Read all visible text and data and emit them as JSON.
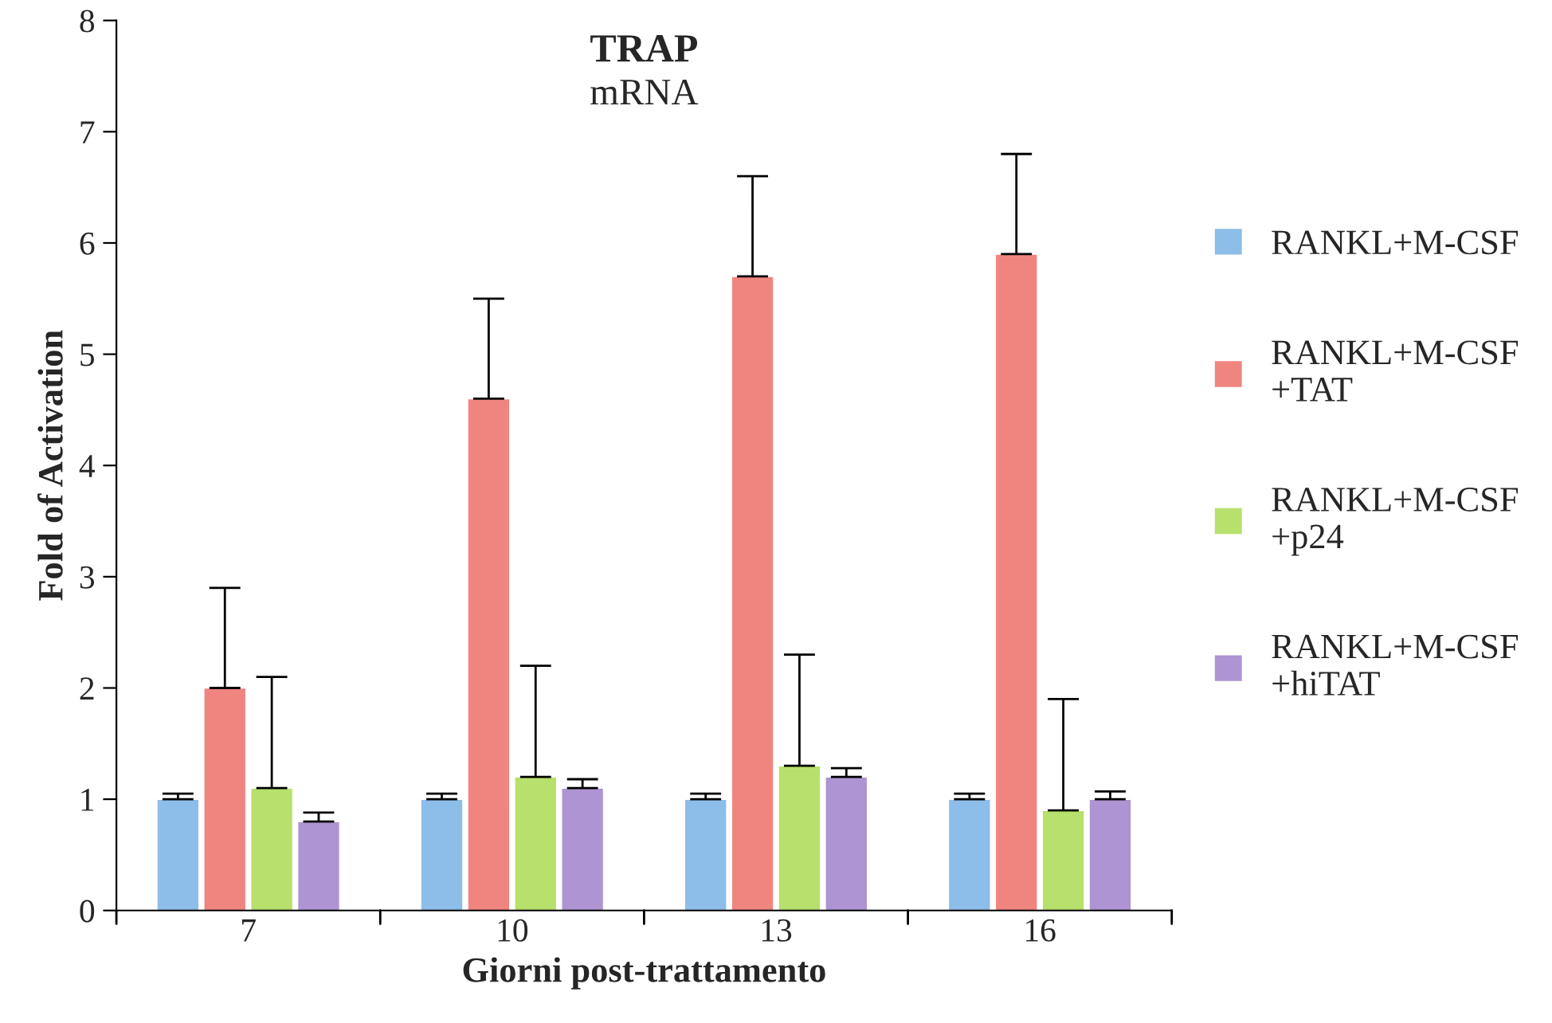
{
  "chart_data": {
    "type": "bar",
    "title": "TRAP",
    "subtitle": "mRNA",
    "xlabel": "Giorni post-trattamento",
    "ylabel": "Fold of Activation",
    "categories": [
      "7",
      "10",
      "13",
      "16"
    ],
    "series": [
      {
        "name": "RANKL+M-CSF",
        "color": "#8dbde9",
        "values": [
          1.0,
          1.0,
          1.0,
          1.0
        ],
        "errors": [
          [
            1.0,
            1.05
          ],
          [
            1.0,
            1.05
          ],
          [
            1.0,
            1.05
          ],
          [
            1.0,
            1.05
          ]
        ]
      },
      {
        "name": "RANKL+M-CSF\n+TAT",
        "color": "#f0857f",
        "values": [
          2.0,
          4.6,
          5.7,
          5.9
        ],
        "errors": [
          [
            2.0,
            2.9
          ],
          [
            4.6,
            5.5
          ],
          [
            5.7,
            6.6
          ],
          [
            5.9,
            6.8
          ]
        ]
      },
      {
        "name": "RANKL+M-CSF\n+p24",
        "color": "#b7e06c",
        "values": [
          1.1,
          1.2,
          1.3,
          0.9
        ],
        "errors": [
          [
            1.1,
            2.1
          ],
          [
            1.2,
            2.2
          ],
          [
            1.3,
            2.3
          ],
          [
            0.9,
            1.9
          ]
        ]
      },
      {
        "name": "RANKL+M-CSF\n+hiTAT",
        "color": "#ae94d2",
        "values": [
          0.8,
          1.1,
          1.2,
          1.0
        ],
        "errors": [
          [
            0.8,
            0.88
          ],
          [
            1.1,
            1.18
          ],
          [
            1.2,
            1.28
          ],
          [
            1.0,
            1.07
          ]
        ]
      }
    ],
    "ylim": [
      0,
      8
    ],
    "yticks": [
      0,
      1,
      2,
      3,
      4,
      5,
      6,
      7,
      8
    ],
    "grid": false,
    "legend": "right"
  }
}
